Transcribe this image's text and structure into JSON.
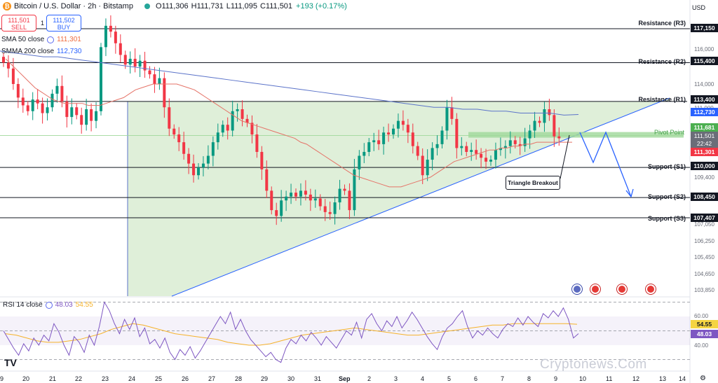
{
  "header": {
    "title": "Bitcoin / U.S. Dollar · 2h · Bitstamp",
    "open": "O111,306",
    "high": "H111,731",
    "low": "L111,095",
    "close": "C111,501",
    "change": "+193 (+0.17%)"
  },
  "trade": {
    "sell_price": "111,501",
    "sell_label": "SELL",
    "spread": "1",
    "buy_price": "111,502",
    "buy_label": "BUY"
  },
  "indicators": {
    "sma_label": "SMA 50 close",
    "sma_value": "111,301",
    "smma_label": "SMMA 200 close",
    "smma_value": "112,730",
    "rsi_label": "RSI 14 close",
    "rsi_value": "48.03",
    "rsi_ma_value": "54.55"
  },
  "currency": "USD",
  "levels": {
    "r3": "Resistance (R3)",
    "r2": "Resistance (R2)",
    "r1": "Resistance (R1)",
    "pivot": "Pivot Point",
    "s1": "Support (S1)",
    "s2": "Support (S2)",
    "s3": "Support (S3)"
  },
  "callout": "Triangle Breakout",
  "price_axis": {
    "ticks": [
      "116,000",
      "114,000",
      "111,000",
      "109,400",
      "106,250",
      "105,450",
      "104,650",
      "103,850"
    ],
    "tags": {
      "r3": "117,150",
      "r2": "115,400",
      "r1": "113,400",
      "smma": "112,730",
      "pivot": "111,681",
      "last": "111,501",
      "countdown": "22:42",
      "sma": "111,301",
      "s1": "110,000",
      "s2": "108,450",
      "s3": "107,407",
      "s3b": "107,050"
    }
  },
  "rsi_axis": {
    "ticks": [
      "60.00",
      "40.00"
    ],
    "ma_tag": "54.55",
    "rsi_tag": "48.03"
  },
  "x_axis": [
    "9",
    "20",
    "21",
    "22",
    "23",
    "24",
    "25",
    "26",
    "27",
    "28",
    "29",
    "30",
    "31",
    "Sep",
    "2",
    "3",
    "4",
    "5",
    "6",
    "7",
    "8",
    "9",
    "10",
    "11",
    "12",
    "13",
    "14"
  ],
  "watermark": "Cryptonews.Com",
  "logo": "TV",
  "colors": {
    "up": "#089981",
    "down": "#f23645",
    "sma": "#e57368",
    "smma": "#5b73c9",
    "triangle_fill": "#d9ecd2",
    "pivot": "#9fd89a",
    "rsi": "#7e57c2",
    "rsi_ma": "#f5b22a"
  },
  "chart_data": {
    "type": "candlestick",
    "title": "Bitcoin / U.S. Dollar · 2h · Bitstamp",
    "price_close": [
      115400,
      115100,
      114300,
      113600,
      113200,
      112900,
      113500,
      113300,
      112800,
      113100,
      113800,
      114200,
      113400,
      112600,
      113100,
      112700,
      112200,
      113000,
      112400,
      112900,
      116200,
      117300,
      117000,
      116400,
      115800,
      115300,
      115600,
      115200,
      115500,
      115000,
      114800,
      114300,
      114600,
      113100,
      112000,
      111700,
      111300,
      110700,
      110200,
      109600,
      110000,
      110200,
      110600,
      111300,
      111800,
      112200,
      111900,
      112900,
      113000,
      112500,
      112300,
      111700,
      110800,
      109900,
      108800,
      107800,
      107500,
      108300,
      108500,
      108700,
      108500,
      108800,
      108600,
      108300,
      108400,
      108000,
      107700,
      107600,
      108200,
      108900,
      108800,
      107800,
      109900,
      110600,
      110800,
      111300,
      111400,
      111200,
      111800,
      111700,
      112000,
      112400,
      112200,
      111800,
      111100,
      110600,
      109600,
      110400,
      111000,
      111200,
      111900,
      113100,
      112500,
      111000,
      111100,
      110800,
      110900,
      110700,
      110500,
      110300,
      110400,
      110900,
      111000,
      111100,
      111400,
      111200,
      111100,
      111500,
      111900,
      112400,
      112300,
      113000,
      112700,
      111600,
      111500
    ],
    "sma50": [
      115600,
      115300,
      115000,
      114700,
      114400,
      114100,
      113900,
      113700,
      113500,
      113400,
      113300,
      113300,
      113300,
      113300,
      113200,
      113200,
      113200,
      113300,
      113400,
      113500,
      113600,
      113800,
      114000,
      114100,
      114200,
      114300,
      114300,
      114300,
      114300,
      114300,
      114200,
      114100,
      114000,
      113800,
      113600,
      113400,
      113200,
      113000,
      112800,
      112600,
      112400,
      112300,
      112200,
      112100,
      112000,
      111900,
      111800,
      111700,
      111600,
      111500,
      111300,
      111200,
      111000,
      110800,
      110600,
      110400,
      110200,
      110000,
      109800,
      109600,
      109500,
      109400,
      109300,
      109200,
      109100,
      109000,
      109000,
      109000,
      109100,
      109200,
      109300,
      109400,
      109500,
      109700,
      109900,
      110100,
      110300,
      110400,
      110500,
      110600,
      110700,
      110800,
      110900,
      110900,
      111000,
      111000,
      111100,
      111100,
      111200,
      111200,
      111300,
      111300,
      111300,
      111300,
      111300,
      111300,
      111300
    ],
    "smma200": [
      116000,
      115900,
      115800,
      115700,
      115700,
      115600,
      115500,
      115400,
      115300,
      115200,
      115100,
      115000,
      114900,
      114800,
      114700,
      114600,
      114500,
      114400,
      114300,
      114200,
      114100,
      114000,
      113900,
      113800,
      113700,
      113600,
      113500,
      113400,
      113300,
      113200,
      113100,
      113100,
      113000,
      113000,
      112900,
      112900,
      112800,
      112800,
      112800,
      112700,
      112730
    ],
    "rsi14": [
      50,
      44,
      38,
      33,
      41,
      36,
      45,
      40,
      47,
      43,
      55,
      49,
      40,
      33,
      46,
      42,
      35,
      47,
      40,
      53,
      70,
      64,
      55,
      48,
      58,
      51,
      59,
      46,
      52,
      41,
      44,
      38,
      45,
      35,
      30,
      37,
      33,
      39,
      31,
      36,
      42,
      48,
      54,
      60,
      55,
      63,
      51,
      58,
      50,
      44,
      40,
      36,
      32,
      35,
      30,
      28,
      38,
      44,
      41,
      47,
      43,
      49,
      45,
      40,
      46,
      42,
      38,
      44,
      50,
      47,
      56,
      45,
      58,
      62,
      55,
      50,
      57,
      53,
      60,
      52,
      57,
      63,
      58,
      52,
      46,
      41,
      37,
      46,
      52,
      55,
      60,
      64,
      53,
      45,
      50,
      47,
      52,
      48,
      45,
      51,
      55,
      53,
      59,
      54,
      60,
      56,
      53,
      62,
      59,
      64,
      60,
      66,
      58,
      45,
      48.03
    ],
    "rsi_ma": [
      48,
      47,
      45,
      43,
      42,
      42,
      43,
      44,
      46,
      48,
      51,
      53,
      55,
      54,
      52,
      50,
      48,
      47,
      46,
      45,
      44,
      42,
      41,
      40,
      40,
      41,
      43,
      45,
      47,
      48,
      49,
      50,
      51,
      52,
      51,
      50,
      49,
      48,
      47,
      47,
      48,
      49,
      50,
      51,
      52,
      53,
      54,
      54,
      55,
      55,
      55,
      55,
      55,
      55,
      54.55
    ],
    "levels": [
      {
        "name": "Resistance (R3)",
        "value": 117150
      },
      {
        "name": "Resistance (R2)",
        "value": 115400
      },
      {
        "name": "Resistance (R1)",
        "value": 113400
      },
      {
        "name": "Pivot Point",
        "value": 111681
      },
      {
        "name": "Support (S1)",
        "value": 110000
      },
      {
        "name": "Support (S2)",
        "value": 108450
      },
      {
        "name": "Support (S3)",
        "value": 107407
      }
    ],
    "last_price": 111501,
    "sma50_last": 111301,
    "smma200_last": 112730,
    "rsi_last": 48.03,
    "rsi_ma_last": 54.55,
    "rsi_bands": [
      60,
      40
    ],
    "annotation": "Triangle Breakout",
    "x_labels": [
      "9",
      "20",
      "21",
      "22",
      "23",
      "24",
      "25",
      "26",
      "27",
      "28",
      "29",
      "30",
      "31",
      "Sep",
      "2",
      "3",
      "4",
      "5",
      "6",
      "7",
      "8",
      "9",
      "10",
      "11",
      "12",
      "13",
      "14"
    ]
  }
}
